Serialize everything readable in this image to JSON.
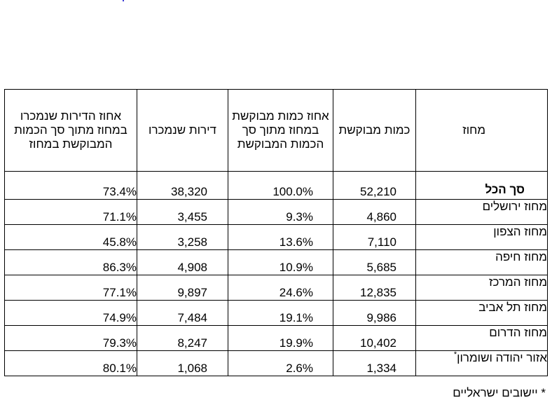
{
  "table": {
    "headers": {
      "district": "מחוז",
      "requested_qty": "כמות מבוקשת",
      "pct_requested": "אחוז כמות מבוקשת במחוז מתוך סך הכמות המבוקשת",
      "sold_apartments": "דירות שנמכרו",
      "pct_sold": "אחוז הדירות שנמכרו במחוז מתוך סך הכמות המבוקשת במחוז"
    },
    "rows": [
      {
        "district": "סך הכל",
        "requested_qty": "52,210",
        "pct_requested": "100.0%",
        "sold_apartments": "38,320",
        "pct_sold": "73.4%"
      },
      {
        "district": "מחוז ירושלים",
        "requested_qty": "4,860",
        "pct_requested": "9.3%",
        "sold_apartments": "3,455",
        "pct_sold": "71.1%"
      },
      {
        "district": "מחוז הצפון",
        "requested_qty": "7,110",
        "pct_requested": "13.6%",
        "sold_apartments": "3,258",
        "pct_sold": "45.8%"
      },
      {
        "district": "מחוז חיפה",
        "requested_qty": "5,685",
        "pct_requested": "10.9%",
        "sold_apartments": "4,908",
        "pct_sold": "86.3%"
      },
      {
        "district": "מחוז המרכז",
        "requested_qty": "12,835",
        "pct_requested": "24.6%",
        "sold_apartments": "9,897",
        "pct_sold": "77.1%"
      },
      {
        "district": "מחוז תל אביב",
        "requested_qty": "9,986",
        "pct_requested": "19.1%",
        "sold_apartments": "7,484",
        "pct_sold": "74.9%"
      },
      {
        "district": "מחוז הדרום",
        "requested_qty": "10,402",
        "pct_requested": "19.9%",
        "sold_apartments": "8,247",
        "pct_sold": "79.3%"
      },
      {
        "district": "אזור יהודה ושומרון",
        "district_marker": "*",
        "requested_qty": "1,334",
        "pct_requested": "2.6%",
        "sold_apartments": "1,068",
        "pct_sold": "80.1%"
      }
    ]
  },
  "footnote": "* יישובים ישראליים"
}
